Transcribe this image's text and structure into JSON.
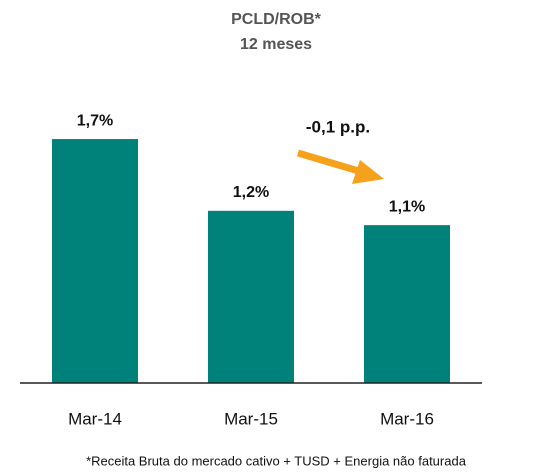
{
  "chart_data": {
    "type": "bar",
    "title": "PCLD/ROB*",
    "subtitle": "12 meses",
    "categories": [
      "Mar-14",
      "Mar-15",
      "Mar-16"
    ],
    "values": [
      1.7,
      1.2,
      1.1
    ],
    "value_labels": [
      "1,7%",
      "1,2%",
      "1,1%"
    ],
    "color": "#00827a",
    "ylim": [
      0,
      1.9
    ],
    "annotation": "-0,1 p.p.",
    "footnote": "*Receita Bruta do mercado cativo + TUSD + Energia não faturada"
  }
}
